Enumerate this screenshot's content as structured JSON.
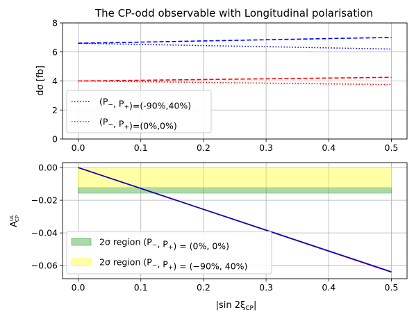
{
  "chart_data": [
    {
      "type": "line",
      "title": "The CP-odd observable with Longitudinal polarisation",
      "ylabel": "dσ [fb]",
      "xlim": [
        -0.025,
        0.525
      ],
      "ylim": [
        0,
        8
      ],
      "xticks": [
        "0.0",
        "0.1",
        "0.2",
        "0.3",
        "0.4",
        "0.5"
      ],
      "yticks": [
        "0",
        "2",
        "4",
        "6",
        "8"
      ],
      "grid": true,
      "legend_position": "lower-left",
      "series": [
        {
          "name": "(P−L , P+L)=(-90%,40%)",
          "color": "#0000ff",
          "style": "dotted",
          "x": [
            0,
            0.1,
            0.2,
            0.3,
            0.4,
            0.5
          ],
          "values": [
            6.6,
            6.52,
            6.44,
            6.36,
            6.28,
            6.2
          ]
        },
        {
          "color": "#0000ff",
          "style": "dashed",
          "x": [
            0,
            0.1,
            0.2,
            0.3,
            0.4,
            0.5
          ],
          "values": [
            6.6,
            6.68,
            6.76,
            6.84,
            6.92,
            7.0
          ]
        },
        {
          "name": "(P−L , P+L)=(0%,0%)",
          "color": "#ff0000",
          "style": "dotted",
          "x": [
            0,
            0.1,
            0.2,
            0.3,
            0.4,
            0.5
          ],
          "values": [
            4.0,
            3.95,
            3.9,
            3.85,
            3.8,
            3.75
          ]
        },
        {
          "color": "#ff0000",
          "style": "dashed",
          "x": [
            0,
            0.1,
            0.2,
            0.3,
            0.4,
            0.5
          ],
          "values": [
            4.0,
            4.05,
            4.1,
            4.15,
            4.2,
            4.25
          ]
        }
      ],
      "legend": [
        {
          "label_pre": "(P",
          "sub1": "−",
          "mid": ", P",
          "sub2": "+",
          "label_post": ")=(-90%,40%)",
          "color": "#0000ff"
        },
        {
          "label_pre": "(P",
          "sub1": "−",
          "mid": ", P",
          "sub2": "+",
          "label_post": ")=(0%,0%)",
          "color": "#ff0000"
        }
      ]
    },
    {
      "type": "line",
      "xlabel": "|sin 2ξ",
      "xlabel_sub": "CP",
      "xlabel_end": "|",
      "ylabel": "A",
      "ylabel_sub": "CP",
      "ylabel_sup": "UL",
      "xlim": [
        -0.025,
        0.525
      ],
      "ylim": [
        -0.068,
        0.003
      ],
      "xticks": [
        "0.0",
        "0.1",
        "0.2",
        "0.3",
        "0.4",
        "0.5"
      ],
      "yticks": [
        "0.00",
        "−0.02",
        "−0.04",
        "−0.06"
      ],
      "grid": true,
      "legend_position": "lower-left",
      "series": [
        {
          "color": "#ff0000",
          "x": [
            0,
            0.5
          ],
          "values": [
            0.0,
            -0.064
          ]
        },
        {
          "color": "#0000cc",
          "x": [
            0,
            0.5
          ],
          "values": [
            0.0,
            -0.0638
          ]
        }
      ],
      "bands": [
        {
          "name": "2σ region (P−L , P+L) = (0%, 0%)",
          "color": "#2ca02c",
          "opacity": 0.4,
          "x": [
            0,
            0.5
          ],
          "y": [
            -0.0157,
            -0.0122
          ]
        },
        {
          "name": "2σ region (P−L , P+L) = (−90%, 40%)",
          "color": "#ffff00",
          "opacity": 0.35,
          "x": [
            0,
            0.5
          ],
          "y": [
            -0.0125,
            0.0
          ]
        }
      ],
      "legend": [
        {
          "label_pre": "2σ region (P",
          "sub1": "−",
          "mid": ", P",
          "sub2": "+",
          "label_post": ") = (0%, 0%)",
          "color": "#2ca02c"
        },
        {
          "label_pre": "2σ region (P",
          "sub1": "−",
          "mid": ", P",
          "sub2": "+",
          "label_post": ") = (−90%, 40%)",
          "color": "#ffff00"
        }
      ]
    }
  ]
}
